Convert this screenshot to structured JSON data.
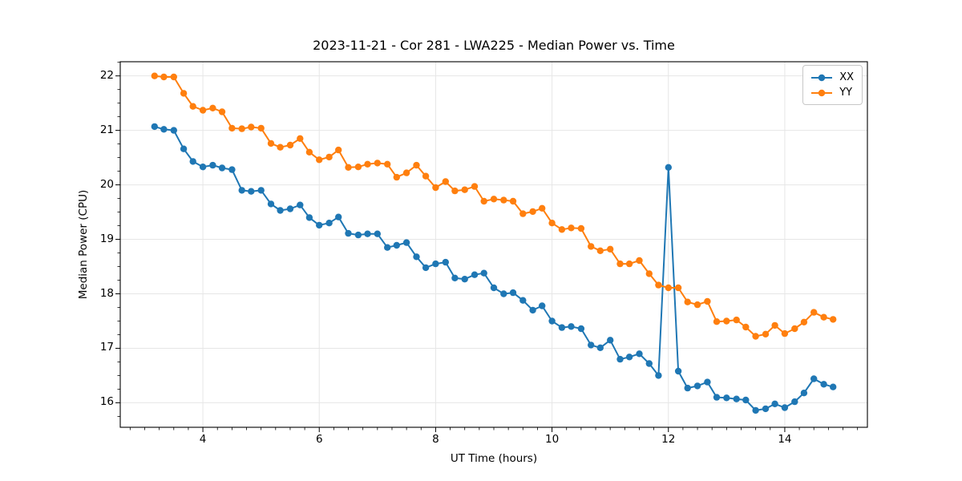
{
  "figure": {
    "background": "#ffffff",
    "text_color": "#000000",
    "grid_color": "#e6e6e6",
    "spine_color": "#000000"
  },
  "chart_data": {
    "type": "line",
    "title": "2023-11-21 - Cor 281 - LWA225 - Median Power vs. Time",
    "xlabel": "UT Time (hours)",
    "ylabel": "Median Power (CPU)",
    "xlim": [
      2.58,
      15.42
    ],
    "ylim": [
      15.55,
      22.26
    ],
    "x_ticks": [
      4,
      6,
      8,
      10,
      12,
      14
    ],
    "y_ticks": [
      16,
      17,
      18,
      19,
      20,
      21,
      22
    ],
    "x_minor_step": 0.25,
    "y_minor_step": 0.25,
    "grid": true,
    "legend_position": "upper right",
    "marker": "circle",
    "x": [
      3.17,
      3.33,
      3.5,
      3.67,
      3.83,
      4,
      4.17,
      4.33,
      4.5,
      4.67,
      4.83,
      5,
      5.17,
      5.33,
      5.5,
      5.67,
      5.83,
      6,
      6.17,
      6.33,
      6.5,
      6.67,
      6.83,
      7,
      7.17,
      7.33,
      7.5,
      7.67,
      7.83,
      8,
      8.17,
      8.33,
      8.5,
      8.67,
      8.83,
      9,
      9.17,
      9.33,
      9.5,
      9.67,
      9.83,
      10,
      10.17,
      10.33,
      10.5,
      10.67,
      10.83,
      11,
      11.17,
      11.33,
      11.5,
      11.67,
      11.83,
      12,
      12.17,
      12.33,
      12.5,
      12.67,
      12.83,
      13,
      13.17,
      13.33,
      13.5,
      13.67,
      13.83,
      14,
      14.17,
      14.33,
      14.5,
      14.67,
      14.83
    ],
    "series": [
      {
        "name": "XX",
        "color": "#1f77b4",
        "values": [
          21.07,
          21.02,
          21.0,
          20.66,
          20.43,
          20.33,
          20.36,
          20.31,
          20.28,
          19.9,
          19.88,
          19.9,
          19.65,
          19.53,
          19.56,
          19.63,
          19.4,
          19.26,
          19.3,
          19.41,
          19.11,
          19.08,
          19.1,
          19.1,
          18.85,
          18.89,
          18.94,
          18.68,
          18.48,
          18.55,
          18.58,
          18.29,
          18.27,
          18.35,
          18.38,
          18.11,
          18.0,
          18.02,
          17.88,
          17.7,
          17.78,
          17.5,
          17.38,
          17.4,
          17.36,
          17.06,
          17.01,
          17.15,
          16.8,
          16.84,
          16.9,
          16.72,
          16.5,
          20.32,
          16.58,
          16.27,
          16.31,
          16.38,
          16.1,
          16.09,
          16.07,
          16.05,
          15.86,
          15.89,
          15.98,
          15.91,
          16.02,
          16.18,
          16.44,
          16.34,
          16.29
        ]
      },
      {
        "name": "YY",
        "color": "#ff7f0e",
        "values": [
          22.0,
          21.98,
          21.98,
          21.68,
          21.44,
          21.37,
          21.41,
          21.34,
          21.04,
          21.03,
          21.06,
          21.04,
          20.76,
          20.69,
          20.73,
          20.85,
          20.6,
          20.46,
          20.51,
          20.64,
          20.32,
          20.33,
          20.38,
          20.4,
          20.38,
          20.14,
          20.22,
          20.36,
          20.16,
          19.95,
          20.06,
          19.89,
          19.91,
          19.97,
          19.7,
          19.74,
          19.72,
          19.7,
          19.47,
          19.51,
          19.57,
          19.3,
          19.18,
          19.21,
          19.2,
          18.87,
          18.79,
          18.82,
          18.55,
          18.55,
          18.61,
          18.37,
          18.16,
          18.11,
          18.11,
          17.85,
          17.8,
          17.86,
          17.49,
          17.5,
          17.52,
          17.39,
          17.22,
          17.26,
          17.42,
          17.27,
          17.36,
          17.48,
          17.66,
          17.57,
          17.53
        ]
      }
    ]
  },
  "legend": {
    "items": [
      {
        "label": "XX",
        "color": "#1f77b4"
      },
      {
        "label": "YY",
        "color": "#ff7f0e"
      }
    ]
  }
}
